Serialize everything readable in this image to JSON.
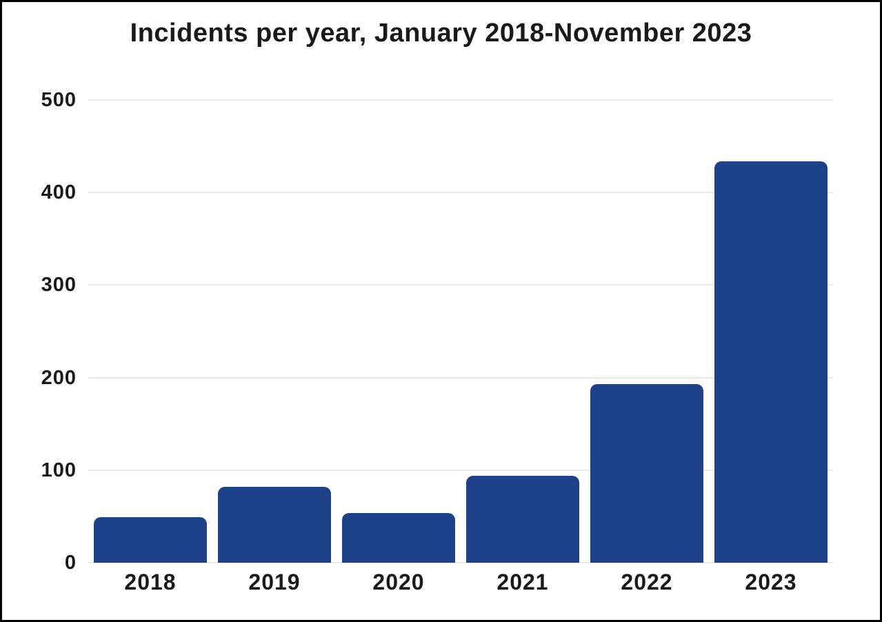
{
  "chart_data": {
    "type": "bar",
    "title": "Incidents per year, January 2018-November 2023",
    "categories": [
      "2018",
      "2019",
      "2020",
      "2021",
      "2022",
      "2023"
    ],
    "values": [
      49,
      82,
      54,
      94,
      193,
      434
    ],
    "xlabel": "",
    "ylabel": "",
    "ylim": [
      0,
      500
    ],
    "yticks": [
      0,
      100,
      200,
      300,
      400,
      500
    ],
    "grid": true,
    "legend": "none",
    "bar_color": "#1e428a",
    "grid_color": "#e8e8e8",
    "text_color": "#1a1a1a",
    "background": "#ffffff",
    "frame_border_color": "#000000"
  }
}
